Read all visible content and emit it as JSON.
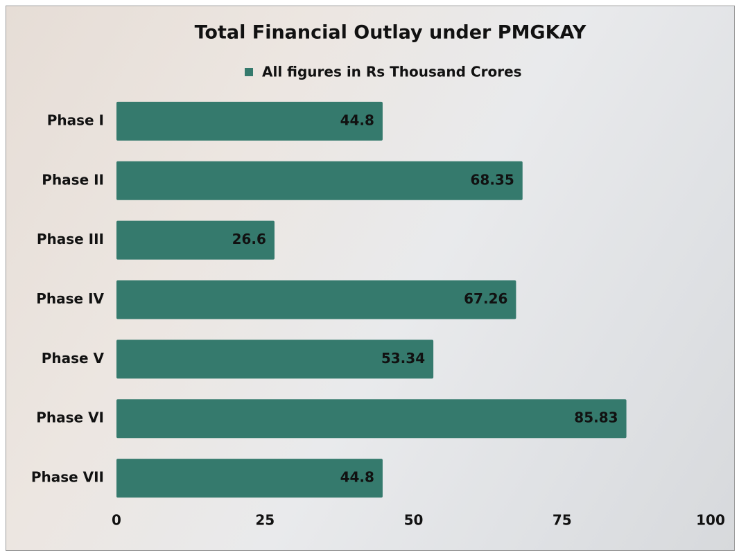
{
  "chart_data": {
    "type": "bar",
    "orientation": "horizontal",
    "title": "Total Financial Outlay under PMGKAY",
    "categories": [
      "Phase I",
      "Phase II",
      "Phase III",
      "Phase IV",
      "Phase V",
      "Phase VI",
      "Phase VII"
    ],
    "series": [
      {
        "name": "All figures in Rs Thousand Crores",
        "color": "#357a6d",
        "values": [
          44.8,
          68.35,
          26.6,
          67.26,
          53.34,
          85.83,
          44.8
        ]
      }
    ],
    "xlim": [
      0,
      100
    ],
    "xticks": [
      0,
      25,
      50,
      75,
      100
    ],
    "grid": false,
    "legend": "top"
  }
}
